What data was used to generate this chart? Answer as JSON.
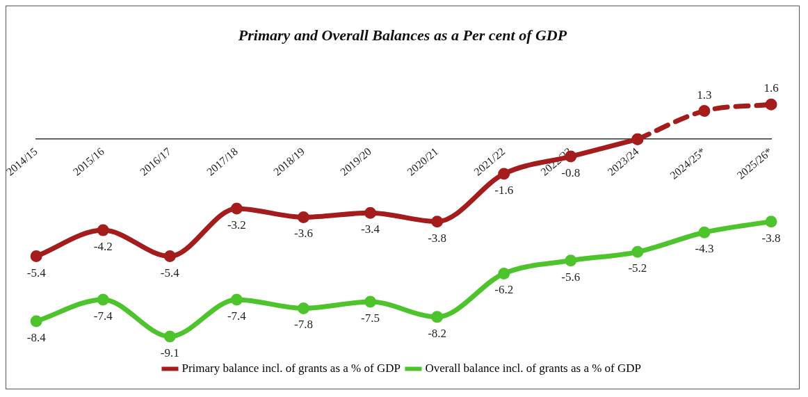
{
  "chart_data": {
    "type": "line",
    "title": "Primary and Overall Balances as a Per cent of GDP",
    "categories": [
      "2014/15",
      "2015/16",
      "2016/17",
      "2017/18",
      "2018/19",
      "2019/20",
      "2020/21",
      "2021/22",
      "2022/23",
      "2023/24",
      "2024/25*",
      "2025/26*"
    ],
    "series": [
      {
        "name": "Primary balance incl. of grants as a % of GDP",
        "color": "#a51c1c",
        "line_style": "solid",
        "values": [
          -5.4,
          -4.2,
          -5.4,
          -3.2,
          -3.6,
          -3.4,
          -3.8,
          -1.6,
          -0.8,
          0,
          null,
          null
        ],
        "value_labels": [
          "-5.4",
          "-4.2",
          "-5.4",
          "-3.2",
          "-3.6",
          "-3.4",
          "-3.8",
          "-1.6",
          "-0.8",
          null,
          null,
          null
        ]
      },
      {
        "color": "#a51c1c",
        "line_style": "dashed",
        "values": [
          null,
          null,
          null,
          null,
          null,
          null,
          null,
          null,
          null,
          0,
          1.3,
          1.6
        ],
        "value_labels": [
          null,
          null,
          null,
          null,
          null,
          null,
          null,
          null,
          null,
          null,
          "1.3",
          "1.6"
        ]
      },
      {
        "name": "Overall balance incl. of grants as a % of GDP",
        "color": "#4ec42c",
        "line_style": "solid",
        "values": [
          -8.4,
          -7.4,
          -9.1,
          -7.4,
          -7.8,
          -7.5,
          -8.2,
          -6.2,
          -5.6,
          -5.2,
          -4.3,
          -3.8
        ],
        "value_labels": [
          "-8.4",
          "-7.4",
          "-9.1",
          "-7.4",
          "-7.8",
          "-7.5",
          "-8.2",
          "-6.2",
          "-5.6",
          "-5.2",
          "-4.3",
          "-3.8"
        ]
      }
    ],
    "tick_labels": "x",
    "grid": false,
    "legend": "bottom",
    "marker": "circle"
  }
}
